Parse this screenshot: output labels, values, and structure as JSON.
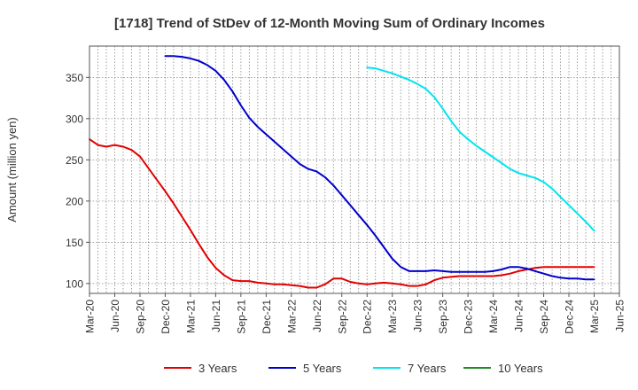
{
  "chart_data": {
    "type": "line",
    "title": "[1718]  Trend of StDev of 12-Month Moving Sum of Ordinary Incomes",
    "ylabel": "Amount (million yen)",
    "xlabel": "",
    "ylim": [
      88,
      388
    ],
    "yticks": [
      100,
      150,
      200,
      250,
      300,
      350
    ],
    "xlim": [
      "2020-03",
      "2025-06"
    ],
    "xticks": [
      "Mar-20",
      "Jun-20",
      "Sep-20",
      "Dec-20",
      "Mar-21",
      "Jun-21",
      "Sep-21",
      "Dec-21",
      "Mar-22",
      "Jun-22",
      "Sep-22",
      "Dec-22",
      "Mar-23",
      "Jun-23",
      "Sep-23",
      "Dec-23",
      "Mar-24",
      "Jun-24",
      "Sep-24",
      "Dec-24",
      "Mar-25",
      "Jun-25"
    ],
    "grid": true,
    "legend_position": "bottom",
    "series": [
      {
        "name": "3 Years",
        "color": "#e00000",
        "x": [
          "2020-03",
          "2020-04",
          "2020-05",
          "2020-06",
          "2020-07",
          "2020-08",
          "2020-09",
          "2020-10",
          "2020-11",
          "2020-12",
          "2021-01",
          "2021-02",
          "2021-03",
          "2021-04",
          "2021-05",
          "2021-06",
          "2021-07",
          "2021-08",
          "2021-09",
          "2021-10",
          "2021-11",
          "2021-12",
          "2022-01",
          "2022-02",
          "2022-03",
          "2022-04",
          "2022-05",
          "2022-06",
          "2022-07",
          "2022-08",
          "2022-09",
          "2022-10",
          "2022-11",
          "2022-12",
          "2023-01",
          "2023-02",
          "2023-03",
          "2023-04",
          "2023-05",
          "2023-06",
          "2023-07",
          "2023-08",
          "2023-09",
          "2023-10",
          "2023-11",
          "2023-12",
          "2024-01",
          "2024-02",
          "2024-03",
          "2024-04",
          "2024-05",
          "2024-06",
          "2024-07",
          "2024-08",
          "2024-09",
          "2024-10",
          "2024-11",
          "2024-12",
          "2025-01",
          "2025-02",
          "2025-03"
        ],
        "values": [
          275,
          268,
          266,
          268,
          266,
          262,
          254,
          240,
          226,
          212,
          197,
          181,
          165,
          148,
          132,
          119,
          110,
          104,
          103,
          103,
          101,
          100,
          99,
          99,
          98,
          97,
          95,
          95,
          99,
          106,
          106,
          102,
          100,
          99,
          100,
          101,
          100,
          99,
          97,
          97,
          99,
          104,
          107,
          108,
          109,
          109,
          109,
          109,
          109,
          110,
          112,
          115,
          117,
          119,
          120,
          120,
          120,
          120,
          120,
          120,
          120
        ]
      },
      {
        "name": "5 Years",
        "color": "#0000cc",
        "x": [
          "2020-12",
          "2021-01",
          "2021-02",
          "2021-03",
          "2021-04",
          "2021-05",
          "2021-06",
          "2021-07",
          "2021-08",
          "2021-09",
          "2021-10",
          "2021-11",
          "2021-12",
          "2022-01",
          "2022-02",
          "2022-03",
          "2022-04",
          "2022-05",
          "2022-06",
          "2022-07",
          "2022-08",
          "2022-09",
          "2022-10",
          "2022-11",
          "2022-12",
          "2023-01",
          "2023-02",
          "2023-03",
          "2023-04",
          "2023-05",
          "2023-06",
          "2023-07",
          "2023-08",
          "2023-09",
          "2023-10",
          "2023-11",
          "2023-12",
          "2024-01",
          "2024-02",
          "2024-03",
          "2024-04",
          "2024-05",
          "2024-06",
          "2024-07",
          "2024-08",
          "2024-09",
          "2024-10",
          "2024-11",
          "2024-12",
          "2025-01",
          "2025-02",
          "2025-03"
        ],
        "values": [
          376,
          376,
          375,
          373,
          370,
          365,
          358,
          347,
          333,
          316,
          301,
          290,
          281,
          272,
          263,
          254,
          245,
          239,
          236,
          229,
          219,
          207,
          195,
          183,
          171,
          158,
          144,
          130,
          120,
          115,
          115,
          115,
          116,
          115,
          114,
          114,
          114,
          114,
          114,
          115,
          117,
          120,
          120,
          118,
          115,
          112,
          109,
          107,
          106,
          106,
          105,
          105
        ]
      },
      {
        "name": "7 Years",
        "color": "#00e5ee",
        "x": [
          "2022-12",
          "2023-01",
          "2023-02",
          "2023-03",
          "2023-04",
          "2023-05",
          "2023-06",
          "2023-07",
          "2023-08",
          "2023-09",
          "2023-10",
          "2023-11",
          "2023-12",
          "2024-01",
          "2024-02",
          "2024-03",
          "2024-04",
          "2024-05",
          "2024-06",
          "2024-07",
          "2024-08",
          "2024-09",
          "2024-10",
          "2024-11",
          "2024-12",
          "2025-01",
          "2025-02",
          "2025-03"
        ],
        "values": [
          362,
          361,
          358,
          355,
          351,
          347,
          342,
          336,
          326,
          312,
          297,
          284,
          275,
          267,
          260,
          253,
          246,
          239,
          234,
          231,
          228,
          223,
          215,
          205,
          195,
          185,
          175,
          164
        ]
      },
      {
        "name": "10 Years",
        "color": "#228b22",
        "x": [],
        "values": []
      }
    ]
  }
}
